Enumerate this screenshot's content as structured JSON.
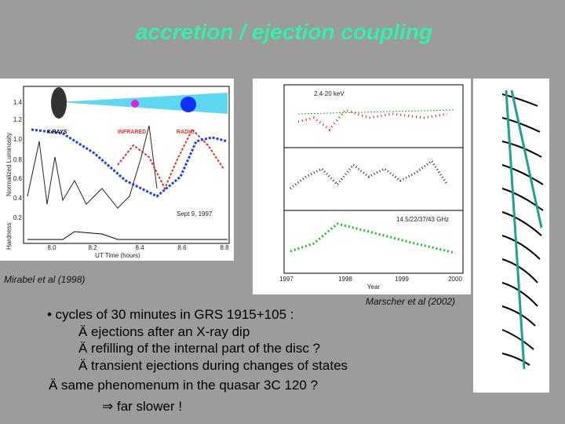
{
  "title": "accretion / ejection coupling",
  "figures": [
    {
      "caption": "Mirabel et al (1998)",
      "labels": [
        "X RAYS",
        "INFRARED",
        "RADIO",
        "Sept 9, 1997",
        "Normalized Luminosity",
        "Hardness",
        "UT Time (hours)",
        "8.0",
        "8.2",
        "8.4",
        "8.6",
        "8.8",
        "1.4",
        "1.2",
        "1.0",
        "0.8",
        "0.6",
        "0.4",
        "0.2"
      ]
    },
    {
      "caption": "Marscher et al (2002)",
      "labels": [
        "2.4-20 keV",
        "14.5/22/37/43 GHz",
        "Year",
        "1997",
        "1998",
        "1999",
        "2000"
      ]
    }
  ],
  "bullets": [
    "• cycles of 30 minutes in GRS 1915+105 :",
    "Ä ejections after an X-ray dip",
    "Ä refilling of the internal part of the disc ?",
    "Ä transient ejections during changes of states",
    "Ä same phenomenum in the quasar 3C 120 ?",
    "⇒ far slower !"
  ]
}
